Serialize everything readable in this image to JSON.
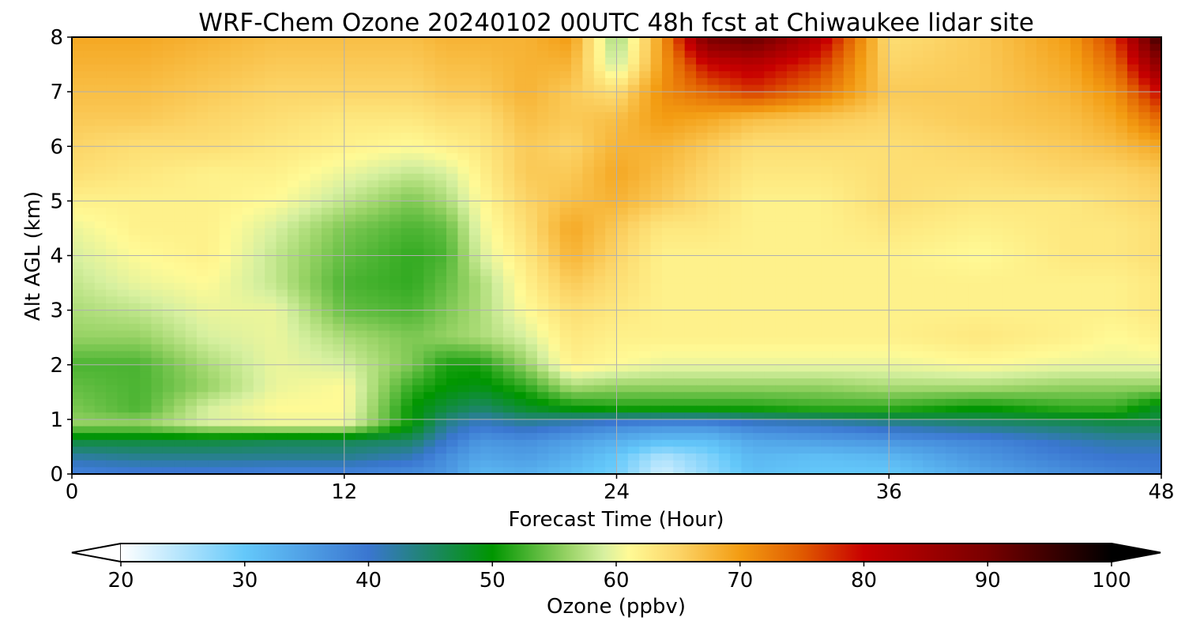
{
  "chart_data": {
    "type": "heatmap",
    "title": "WRF-Chem Ozone  20240102 00UTC 48h fcst at Chiwaukee lidar site",
    "xlabel": "Forecast Time (Hour)",
    "ylabel": "Alt AGL (km)",
    "xlim": [
      0,
      48
    ],
    "ylim": [
      0,
      8
    ],
    "xticks": [
      0,
      12,
      24,
      36,
      48
    ],
    "yticks": [
      0,
      1,
      2,
      3,
      4,
      5,
      6,
      7,
      8
    ],
    "grid": true,
    "colorbar": {
      "label": "Ozone  (ppbv)",
      "min": 20,
      "max": 100,
      "ticks": [
        20,
        30,
        40,
        50,
        60,
        70,
        80,
        90,
        100
      ],
      "extend": "both",
      "stops": [
        {
          "value": 20,
          "color": "#ffffff"
        },
        {
          "value": 30,
          "color": "#64c8fa"
        },
        {
          "value": 40,
          "color": "#3a76d0"
        },
        {
          "value": 50,
          "color": "#009600"
        },
        {
          "value": 56,
          "color": "#96d264"
        },
        {
          "value": 59,
          "color": "#d7f0a0"
        },
        {
          "value": 61,
          "color": "#fffa96"
        },
        {
          "value": 65,
          "color": "#fcd568"
        },
        {
          "value": 70,
          "color": "#f39c12"
        },
        {
          "value": 75,
          "color": "#e05a00"
        },
        {
          "value": 80,
          "color": "#c80000"
        },
        {
          "value": 90,
          "color": "#780000"
        },
        {
          "value": 100,
          "color": "#000000"
        }
      ]
    },
    "hours": [
      0,
      3,
      6,
      9,
      12,
      15,
      16.5,
      18,
      20,
      22,
      24,
      26,
      28,
      30,
      33,
      36,
      40,
      44,
      46,
      48
    ],
    "altitudes_km": [
      0,
      0.3,
      0.6,
      0.9,
      1.2,
      1.6,
      2.0,
      2.5,
      3.0,
      3.5,
      4.0,
      4.5,
      5.0,
      5.5,
      6.0,
      6.5,
      7.0,
      7.5,
      8.0
    ],
    "ozone_ppbv": [
      [
        38,
        39,
        39,
        38,
        38,
        37,
        36,
        32,
        33,
        31,
        29,
        23,
        27,
        31,
        30,
        30,
        34,
        37,
        38,
        39
      ],
      [
        42,
        43,
        43,
        43,
        43,
        41,
        37,
        34,
        35,
        33,
        30,
        25,
        28,
        32,
        31,
        32,
        36,
        39,
        40,
        40
      ],
      [
        47,
        47,
        47,
        46,
        46,
        45,
        40,
        36,
        37,
        35,
        33,
        31,
        31,
        34,
        35,
        36,
        38,
        41,
        42,
        42
      ],
      [
        56,
        56,
        59,
        60,
        60,
        50,
        43,
        40,
        42,
        40,
        38,
        37,
        37,
        39,
        40,
        42,
        44,
        45,
        46,
        46
      ],
      [
        55,
        53,
        59,
        61,
        61,
        50,
        47,
        45,
        48,
        50,
        51,
        51,
        51,
        51,
        52,
        52,
        50,
        52,
        52,
        48
      ],
      [
        54,
        53,
        56,
        60,
        61,
        52,
        50,
        49,
        52,
        57,
        56,
        56,
        56,
        56,
        56,
        57,
        57,
        56,
        56,
        56
      ],
      [
        53,
        53,
        57,
        60,
        59,
        55,
        51,
        51,
        56,
        62,
        61,
        60,
        60,
        60,
        60,
        60,
        61,
        60,
        60,
        60
      ],
      [
        56,
        56,
        59,
        60,
        57,
        55,
        56,
        57,
        59,
        63,
        62,
        62,
        62,
        62,
        62,
        62,
        63,
        62,
        61,
        62
      ],
      [
        57,
        58,
        60,
        60,
        54,
        53,
        55,
        57,
        61,
        64,
        63,
        62,
        62,
        62,
        62,
        62,
        62,
        62,
        62,
        63
      ],
      [
        58,
        60,
        61,
        58,
        53,
        52,
        54,
        57,
        62,
        66,
        64,
        62,
        62,
        62,
        62,
        62,
        62,
        62,
        62,
        63
      ],
      [
        59,
        61,
        62,
        58,
        54,
        52,
        53,
        59,
        63,
        68,
        65,
        62,
        62,
        62,
        62,
        62,
        61,
        63,
        63,
        64
      ],
      [
        60,
        62,
        62,
        59,
        55,
        53,
        54,
        60,
        64,
        69,
        66,
        63,
        63,
        62,
        62,
        63,
        62,
        63,
        63,
        64
      ],
      [
        62,
        62,
        62,
        61,
        58,
        55,
        57,
        61,
        65,
        67,
        68,
        66,
        64,
        62,
        62,
        64,
        63,
        63,
        64,
        65
      ],
      [
        64,
        63,
        62,
        62,
        60,
        58,
        59,
        62,
        66,
        66,
        69,
        67,
        65,
        63,
        63,
        64,
        64,
        65,
        65,
        66
      ],
      [
        65,
        64,
        64,
        63,
        62,
        61,
        62,
        63,
        66,
        65,
        68,
        68,
        66,
        64,
        64,
        64,
        65,
        66,
        67,
        69
      ],
      [
        66,
        66,
        65,
        64,
        63,
        63,
        64,
        64,
        67,
        66,
        67,
        70,
        69,
        67,
        66,
        65,
        66,
        67,
        69,
        74
      ],
      [
        67,
        67,
        66,
        65,
        65,
        65,
        66,
        66,
        68,
        66,
        64,
        71,
        74,
        77,
        73,
        66,
        66,
        68,
        71,
        80
      ],
      [
        68,
        68,
        67,
        66,
        66,
        66,
        67,
        67,
        68,
        68,
        58,
        70,
        80,
        82,
        77,
        65,
        66,
        69,
        74,
        88
      ],
      [
        69,
        69,
        68,
        67,
        67,
        67,
        68,
        68,
        68,
        70,
        56,
        70,
        90,
        92,
        82,
        64,
        66,
        70,
        77,
        96
      ]
    ]
  }
}
